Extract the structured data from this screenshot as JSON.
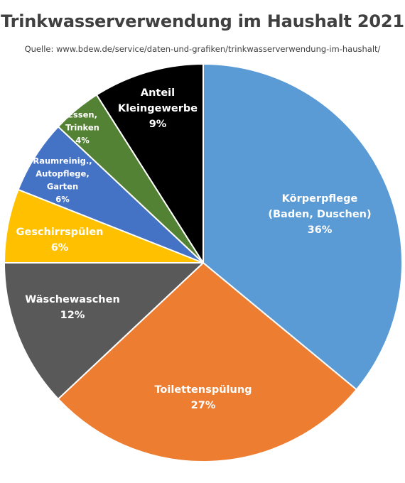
{
  "chart_data": {
    "type": "pie",
    "title": "Trinkwasserverwendung im Haushalt 2021",
    "subtitle": "Quelle: www.bdew.de/service/daten-und-grafiken/trinkwasserverwendung-im-haushalt/",
    "start_angle_deg": 0,
    "direction": "clockwise",
    "slices": [
      {
        "label": [
          "Körperpflege",
          "(Baden, Duschen)"
        ],
        "pct_label": "36%",
        "value": 36,
        "color": "#5B9BD5"
      },
      {
        "label": [
          "Toilettenspülung"
        ],
        "pct_label": "27%",
        "value": 27,
        "color": "#ED7D31"
      },
      {
        "label": [
          "Wäschewaschen"
        ],
        "pct_label": "12%",
        "value": 12,
        "color": "#595959"
      },
      {
        "label": [
          "Geschirrspülen"
        ],
        "pct_label": "6%",
        "value": 6,
        "color": "#FFC000"
      },
      {
        "label": [
          "Raumreinig.,",
          "Autopflege,",
          "Garten"
        ],
        "pct_label": "6%",
        "value": 6,
        "color": "#4472C4"
      },
      {
        "label": [
          "Essen,",
          "Trinken"
        ],
        "pct_label": "4%",
        "value": 4,
        "color": "#548235"
      },
      {
        "label": [
          "Anteil",
          "Kleingewerbe"
        ],
        "pct_label": "9%",
        "value": 9,
        "color": "#000000"
      }
    ]
  }
}
